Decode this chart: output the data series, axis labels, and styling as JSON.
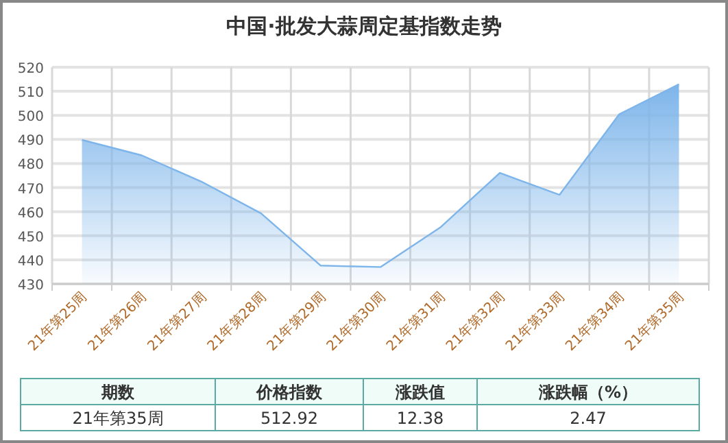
{
  "chart_data": {
    "type": "area",
    "title": "中国·批发大蒜周定基指数走势",
    "categories": [
      "21年第25周",
      "21年第26周",
      "21年第27周",
      "21年第28周",
      "21年第29周",
      "21年第30周",
      "21年第31周",
      "21年第32周",
      "21年第33周",
      "21年第34周",
      "21年第35周"
    ],
    "series": [
      {
        "color": "#7db5ea",
        "values": [
          489.8,
          483.4,
          472.5,
          459.3,
          437.6,
          437.0,
          453.4,
          476.1,
          467.0,
          500.5,
          512.92
        ]
      }
    ],
    "ylim": [
      430,
      520
    ],
    "yticks": [
      430,
      440,
      450,
      460,
      470,
      480,
      490,
      500,
      510,
      520
    ],
    "grid": true,
    "annotations": [
      "期数",
      "价格指数",
      "涨跌值",
      "涨跌幅（%）",
      "21年第35周",
      "512.92",
      "12.38",
      "2.47"
    ]
  }
}
